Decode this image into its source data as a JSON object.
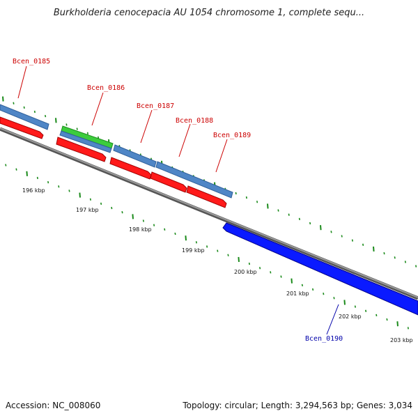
{
  "title": "Burkholderia cenocepacia AU 1054 chromosome 1, complete sequ...",
  "footer": {
    "accession": "Accession: NC_008060",
    "info": "Topology: circular; Length: 3,294,563 bp; Genes: 3,034"
  },
  "scale_labels": [
    "196 kbp",
    "197 kbp",
    "198 kbp",
    "199 kbp",
    "200 kbp",
    "201 kbp",
    "202 kbp",
    "203 kbp"
  ],
  "genes": [
    {
      "id": "Bcen_0185",
      "label": "Bcen_0185",
      "color": "#cc0000"
    },
    {
      "id": "Bcen_0186",
      "label": "Bcen_0186",
      "color": "#cc0000"
    },
    {
      "id": "Bcen_0187",
      "label": "Bcen_0187",
      "color": "#cc0000"
    },
    {
      "id": "Bcen_0188",
      "label": "Bcen_0188",
      "color": "#cc0000"
    },
    {
      "id": "Bcen_0189",
      "label": "Bcen_0189",
      "color": "#cc0000"
    },
    {
      "id": "Bcen_0190",
      "label": "Bcen_0190",
      "color": "#0000aa"
    }
  ],
  "colors": {
    "forward_gene": "#ff0000",
    "reverse_gene": "#0000ff",
    "cds_bar": "#4f86c6",
    "green_feature": "#33cc33",
    "backbone": "#777777",
    "ticks": "#1a8a1a"
  }
}
